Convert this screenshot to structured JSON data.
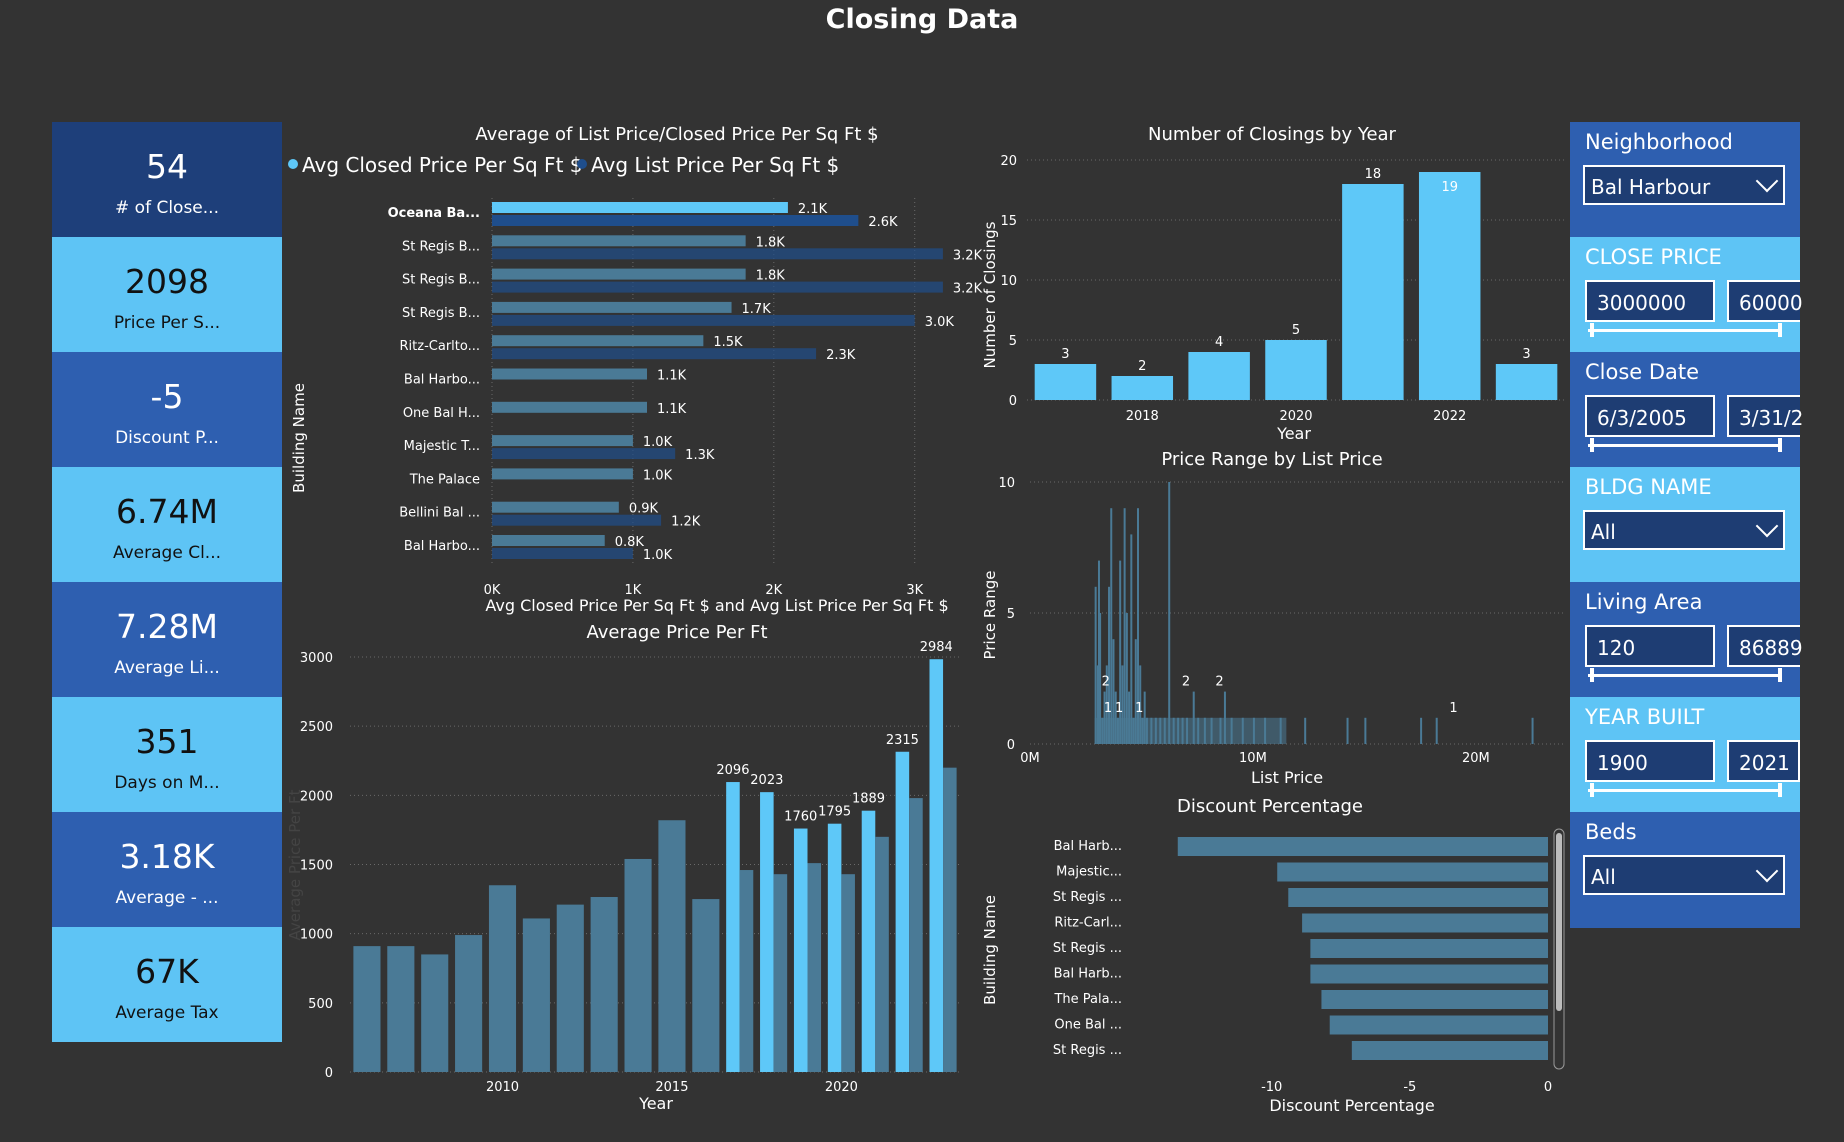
{
  "page_title": "Closing Data",
  "colors": {
    "bg": "#333333",
    "card_dark": "#1e3f7a",
    "card_mid": "#2e5fb0",
    "card_light": "#5ec4f5",
    "bar_light": "#5ec8f8",
    "bar_dark": "#1f4e8c",
    "bar_muted": "#4a7a96",
    "slicer_light": "#5ec4f5"
  },
  "cards": [
    {
      "value": "54",
      "label": "# of Close...",
      "style": "dark"
    },
    {
      "value": "2098",
      "label": "Price Per S...",
      "style": "light"
    },
    {
      "value": "-5",
      "label": "Discount P...",
      "style": "mid"
    },
    {
      "value": "6.74M",
      "label": "Average Cl...",
      "style": "light"
    },
    {
      "value": "7.28M",
      "label": "Average Li...",
      "style": "mid"
    },
    {
      "value": "351",
      "label": "Days on M...",
      "style": "light"
    },
    {
      "value": "3.18K",
      "label": "Average - ...",
      "style": "mid"
    },
    {
      "value": "67K",
      "label": "Average Tax",
      "style": "light"
    }
  ],
  "slicers": {
    "neighborhood": {
      "header": "Neighborhood",
      "value": "Bal Harbour"
    },
    "close_price": {
      "header": "CLOSE PRICE",
      "min": "3000000",
      "max": "60000"
    },
    "close_date": {
      "header": "Close Date",
      "min": "6/3/2005",
      "max": "3/31/2"
    },
    "bldg_name": {
      "header": "BLDG NAME",
      "value": "All"
    },
    "living_area": {
      "header": "Living Area",
      "min": "120",
      "max": "86889"
    },
    "year_built": {
      "header": "YEAR BUILT",
      "min": "1900",
      "max": "2021"
    },
    "beds": {
      "header": "Beds",
      "value": "All"
    }
  },
  "chart_data": [
    {
      "id": "list_closed",
      "type": "bar",
      "orientation": "horizontal",
      "title": "Average of List Price/Closed Price Per Sq Ft $",
      "xlabel": "Avg Closed Price Per Sq Ft $ and Avg List Price Per Sq Ft $",
      "ylabel": "Building Name",
      "legend_position": "top-left",
      "xlim": [
        0,
        3300
      ],
      "x_ticks": [
        "0K",
        "1K",
        "2K",
        "3K"
      ],
      "x_tick_values": [
        0,
        1000,
        2000,
        3000
      ],
      "categories": [
        "Oceana Ba...",
        "St Regis B...",
        "St Regis B...",
        "St Regis B...",
        "Ritz-Carlto...",
        "Bal Harbo...",
        "One Bal H...",
        "Majestic T...",
        "The Palace",
        "Bellini Bal ...",
        "Bal Harbo..."
      ],
      "series": [
        {
          "name": "Avg Closed Price Per Sq Ft $",
          "values": [
            2100,
            1800,
            1800,
            1700,
            1500,
            1100,
            1100,
            1000,
            1000,
            900,
            800
          ],
          "labels": [
            "2.1K",
            "1.8K",
            "1.8K",
            "1.7K",
            "1.5K",
            "1.1K",
            "1.1K",
            "1.0K",
            "1.0K",
            "0.9K",
            "0.8K"
          ]
        },
        {
          "name": "Avg List Price Per Sq Ft $",
          "values": [
            2600,
            3200,
            3200,
            3000,
            2300,
            null,
            null,
            1300,
            null,
            1200,
            1000
          ],
          "labels": [
            "2.6K",
            "3.2K",
            "3.2K",
            "3.0K",
            "2.3K",
            "",
            "",
            "1.3K",
            "",
            "1.2K",
            "1.0K"
          ]
        }
      ]
    },
    {
      "id": "closings_by_year",
      "type": "bar",
      "title": "Number of Closings by Year",
      "xlabel": "Year",
      "ylabel": "Number of Closings",
      "ylim": [
        0,
        20
      ],
      "y_ticks": [
        0,
        5,
        10,
        15,
        20
      ],
      "x": [
        2017,
        2018,
        2019,
        2020,
        2021,
        2022,
        2023
      ],
      "x_tick_labels": [
        "2018",
        "2020",
        "2022"
      ],
      "x_tick_values": [
        2018,
        2020,
        2022
      ],
      "values": [
        3,
        2,
        4,
        5,
        18,
        19,
        3
      ]
    },
    {
      "id": "price_per_ft",
      "type": "bar",
      "title": "Average Price Per Ft",
      "xlabel": "Year",
      "ylabel": "Average Price Per Ft",
      "ylim": [
        0,
        3000
      ],
      "y_ticks": [
        0,
        500,
        1000,
        1500,
        2000,
        2500,
        3000
      ],
      "x": [
        2006,
        2007,
        2008,
        2009,
        2010,
        2011,
        2012,
        2013,
        2014,
        2015,
        2016,
        2017,
        2018,
        2019,
        2020,
        2021,
        2022,
        2023
      ],
      "x_tick_labels": [
        "2010",
        "2015",
        "2020"
      ],
      "x_tick_values": [
        2010,
        2015,
        2020
      ],
      "series": [
        {
          "values": [
            910,
            910,
            850,
            990,
            1350,
            1110,
            1210,
            1265,
            1540,
            1820,
            1250,
            1460,
            1430,
            1510,
            1430,
            1700,
            1980,
            2200
          ]
        },
        {
          "values": [
            null,
            null,
            null,
            null,
            null,
            null,
            null,
            null,
            null,
            null,
            null,
            2096,
            2023,
            1760,
            1795,
            1889,
            2315,
            2984
          ],
          "labels": [
            "",
            "",
            "",
            "",
            "",
            "",
            "",
            "",
            "",
            "",
            "",
            "2096",
            "2023",
            "1760",
            "1795",
            "1889",
            "2315",
            "2984"
          ]
        }
      ]
    },
    {
      "id": "price_range",
      "type": "bar",
      "title": "Price Range by List Price",
      "xlabel": "List Price",
      "ylabel": "Price Range",
      "xlim": [
        0,
        24000000
      ],
      "ylim": [
        0,
        10
      ],
      "x_ticks": [
        "0M",
        "10M",
        "20M"
      ],
      "x_tick_values": [
        0,
        10000000,
        20000000
      ],
      "y_ticks": [
        0,
        5,
        10
      ],
      "points": [
        [
          2900000,
          6
        ],
        [
          3000000,
          3
        ],
        [
          3050000,
          7
        ],
        [
          3100000,
          5
        ],
        [
          3200000,
          1
        ],
        [
          3300000,
          2
        ],
        [
          3400000,
          3
        ],
        [
          3500000,
          6
        ],
        [
          3600000,
          9
        ],
        [
          3700000,
          4
        ],
        [
          3800000,
          2
        ],
        [
          3900000,
          1
        ],
        [
          4000000,
          7
        ],
        [
          4100000,
          3
        ],
        [
          4200000,
          9
        ],
        [
          4300000,
          5
        ],
        [
          4400000,
          2
        ],
        [
          4500000,
          8
        ],
        [
          4600000,
          1
        ],
        [
          4700000,
          4
        ],
        [
          4800000,
          9
        ],
        [
          4900000,
          3
        ],
        [
          5000000,
          1
        ],
        [
          5100000,
          2
        ],
        [
          5200000,
          1
        ],
        [
          5400000,
          1
        ],
        [
          5600000,
          1
        ],
        [
          5800000,
          1
        ],
        [
          6000000,
          1
        ],
        [
          6200000,
          10
        ],
        [
          6400000,
          1
        ],
        [
          6600000,
          1
        ],
        [
          6800000,
          1
        ],
        [
          7000000,
          1
        ],
        [
          7300000,
          2
        ],
        [
          7500000,
          1
        ],
        [
          7800000,
          1
        ],
        [
          8100000,
          1
        ],
        [
          8500000,
          1
        ],
        [
          8700000,
          2
        ],
        [
          9000000,
          1
        ],
        [
          9500000,
          1
        ],
        [
          10000000,
          1
        ],
        [
          10500000,
          1
        ],
        [
          11200000,
          1
        ],
        [
          12300000,
          1
        ],
        [
          14200000,
          1
        ],
        [
          15000000,
          1
        ],
        [
          17500000,
          1
        ],
        [
          18200000,
          1
        ],
        [
          22500000,
          1
        ]
      ],
      "labels": [
        {
          "x": 3500000,
          "y": 1,
          "text": "1"
        },
        {
          "x": 4000000,
          "y": 1,
          "text": "1"
        },
        {
          "x": 4900000,
          "y": 1,
          "text": "1"
        },
        {
          "x": 3400000,
          "y": 2,
          "text": "2"
        },
        {
          "x": 7000000,
          "y": 2,
          "text": "2"
        },
        {
          "x": 8500000,
          "y": 2,
          "text": "2"
        },
        {
          "x": 19000000,
          "y": 1,
          "text": "1"
        }
      ]
    },
    {
      "id": "discount",
      "type": "bar",
      "orientation": "horizontal",
      "title": "Discount Percentage",
      "xlabel": "Discount Percentage",
      "ylabel": "Building Name",
      "xlim": [
        -13.5,
        0
      ],
      "x_ticks": [
        "-10",
        "-5",
        "0"
      ],
      "x_tick_values": [
        -10,
        -5,
        0
      ],
      "categories": [
        "Bal Harb...",
        "Majestic...",
        "St Regis ...",
        "Ritz-Carl...",
        "St Regis ...",
        "Bal Harb...",
        "The Pala...",
        "One Bal ...",
        "St Regis ..."
      ],
      "values": [
        -13.4,
        -9.8,
        -9.4,
        -8.9,
        -8.6,
        -8.6,
        -8.2,
        -7.9,
        -7.1
      ]
    }
  ]
}
